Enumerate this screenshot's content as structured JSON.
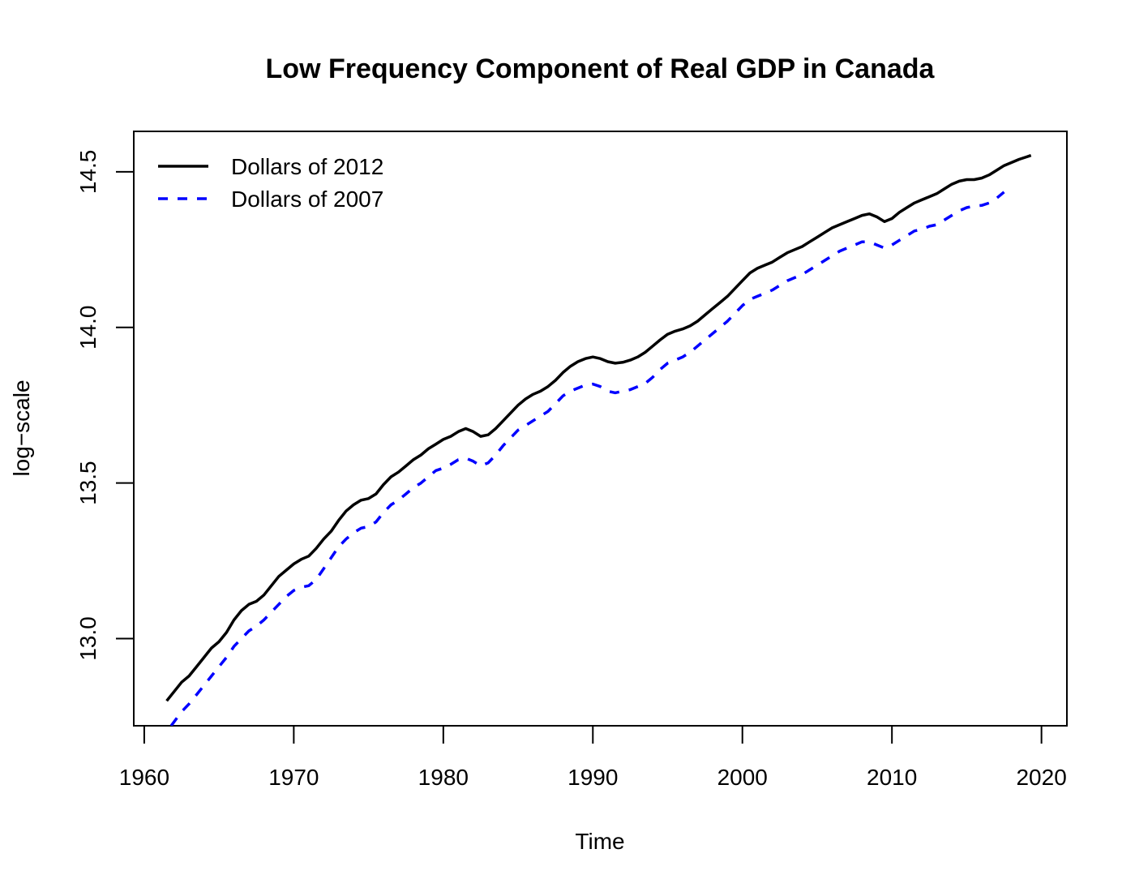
{
  "chart_data": {
    "type": "line",
    "title": "Low Frequency Component of Real GDP in Canada",
    "xlabel": "Time",
    "ylabel": "log−scale",
    "xlim": [
      1959.3,
      2021.7
    ],
    "ylim": [
      12.72,
      14.63
    ],
    "x_ticks": [
      1960,
      1970,
      1980,
      1990,
      2000,
      2010,
      2020
    ],
    "x_tick_labels": [
      "1960",
      "1970",
      "1980",
      "1990",
      "2000",
      "2010",
      "2020"
    ],
    "y_ticks": [
      13.0,
      13.5,
      14.0,
      14.5
    ],
    "y_tick_labels": [
      "13.0",
      "13.5",
      "14.0",
      "14.5"
    ],
    "grid": false,
    "legend_position": "top-left",
    "series": [
      {
        "name": "Dollars of 2012",
        "color": "#000000",
        "dash": "solid",
        "points": [
          [
            1961.5,
            12.8
          ],
          [
            1962.0,
            12.83
          ],
          [
            1962.5,
            12.86
          ],
          [
            1963.0,
            12.88
          ],
          [
            1963.5,
            12.91
          ],
          [
            1964.0,
            12.94
          ],
          [
            1964.5,
            12.97
          ],
          [
            1965.0,
            12.99
          ],
          [
            1965.5,
            13.02
          ],
          [
            1966.0,
            13.06
          ],
          [
            1966.5,
            13.09
          ],
          [
            1967.0,
            13.11
          ],
          [
            1967.5,
            13.12
          ],
          [
            1968.0,
            13.14
          ],
          [
            1968.5,
            13.17
          ],
          [
            1969.0,
            13.2
          ],
          [
            1969.5,
            13.22
          ],
          [
            1970.0,
            13.24
          ],
          [
            1970.5,
            13.255
          ],
          [
            1971.0,
            13.265
          ],
          [
            1971.5,
            13.29
          ],
          [
            1972.0,
            13.32
          ],
          [
            1972.5,
            13.345
          ],
          [
            1973.0,
            13.38
          ],
          [
            1973.5,
            13.41
          ],
          [
            1974.0,
            13.43
          ],
          [
            1974.5,
            13.445
          ],
          [
            1975.0,
            13.45
          ],
          [
            1975.5,
            13.465
          ],
          [
            1976.0,
            13.495
          ],
          [
            1976.5,
            13.52
          ],
          [
            1977.0,
            13.535
          ],
          [
            1977.5,
            13.555
          ],
          [
            1978.0,
            13.575
          ],
          [
            1978.5,
            13.59
          ],
          [
            1979.0,
            13.61
          ],
          [
            1979.5,
            13.625
          ],
          [
            1980.0,
            13.64
          ],
          [
            1980.5,
            13.65
          ],
          [
            1981.0,
            13.665
          ],
          [
            1981.5,
            13.675
          ],
          [
            1982.0,
            13.665
          ],
          [
            1982.5,
            13.65
          ],
          [
            1983.0,
            13.655
          ],
          [
            1983.5,
            13.675
          ],
          [
            1984.0,
            13.7
          ],
          [
            1984.5,
            13.725
          ],
          [
            1985.0,
            13.75
          ],
          [
            1985.5,
            13.77
          ],
          [
            1986.0,
            13.785
          ],
          [
            1986.5,
            13.795
          ],
          [
            1987.0,
            13.81
          ],
          [
            1987.5,
            13.83
          ],
          [
            1988.0,
            13.855
          ],
          [
            1988.5,
            13.875
          ],
          [
            1989.0,
            13.89
          ],
          [
            1989.5,
            13.9
          ],
          [
            1990.0,
            13.905
          ],
          [
            1990.5,
            13.9
          ],
          [
            1991.0,
            13.89
          ],
          [
            1991.5,
            13.885
          ],
          [
            1992.0,
            13.888
          ],
          [
            1992.5,
            13.895
          ],
          [
            1993.0,
            13.905
          ],
          [
            1993.5,
            13.92
          ],
          [
            1994.0,
            13.94
          ],
          [
            1994.5,
            13.96
          ],
          [
            1995.0,
            13.978
          ],
          [
            1995.5,
            13.988
          ],
          [
            1996.0,
            13.995
          ],
          [
            1996.5,
            14.005
          ],
          [
            1997.0,
            14.02
          ],
          [
            1997.5,
            14.04
          ],
          [
            1998.0,
            14.06
          ],
          [
            1998.5,
            14.08
          ],
          [
            1999.0,
            14.1
          ],
          [
            1999.5,
            14.125
          ],
          [
            2000.0,
            14.15
          ],
          [
            2000.5,
            14.175
          ],
          [
            2001.0,
            14.19
          ],
          [
            2001.5,
            14.2
          ],
          [
            2002.0,
            14.21
          ],
          [
            2002.5,
            14.225
          ],
          [
            2003.0,
            14.24
          ],
          [
            2003.5,
            14.25
          ],
          [
            2004.0,
            14.26
          ],
          [
            2004.5,
            14.275
          ],
          [
            2005.0,
            14.29
          ],
          [
            2005.5,
            14.305
          ],
          [
            2006.0,
            14.32
          ],
          [
            2006.5,
            14.33
          ],
          [
            2007.0,
            14.34
          ],
          [
            2007.5,
            14.35
          ],
          [
            2008.0,
            14.36
          ],
          [
            2008.5,
            14.365
          ],
          [
            2009.0,
            14.355
          ],
          [
            2009.5,
            14.34
          ],
          [
            2010.0,
            14.35
          ],
          [
            2010.5,
            14.37
          ],
          [
            2011.0,
            14.385
          ],
          [
            2011.5,
            14.4
          ],
          [
            2012.0,
            14.41
          ],
          [
            2012.5,
            14.42
          ],
          [
            2013.0,
            14.43
          ],
          [
            2013.5,
            14.445
          ],
          [
            2014.0,
            14.46
          ],
          [
            2014.5,
            14.47
          ],
          [
            2015.0,
            14.475
          ],
          [
            2015.5,
            14.475
          ],
          [
            2016.0,
            14.48
          ],
          [
            2016.5,
            14.49
          ],
          [
            2017.0,
            14.505
          ],
          [
            2017.5,
            14.52
          ],
          [
            2018.0,
            14.53
          ],
          [
            2018.5,
            14.54
          ],
          [
            2019.0,
            14.548
          ],
          [
            2019.3,
            14.553
          ]
        ]
      },
      {
        "name": "Dollars of 2007",
        "color": "#0000ff",
        "dash": "dashed",
        "points": [
          [
            1961.8,
            12.72
          ],
          [
            1962.5,
            12.765
          ],
          [
            1963.0,
            12.79
          ],
          [
            1963.5,
            12.82
          ],
          [
            1964.0,
            12.85
          ],
          [
            1964.5,
            12.88
          ],
          [
            1965.0,
            12.91
          ],
          [
            1965.5,
            12.94
          ],
          [
            1966.0,
            12.975
          ],
          [
            1966.5,
            13.0
          ],
          [
            1967.0,
            13.025
          ],
          [
            1967.5,
            13.04
          ],
          [
            1968.0,
            13.06
          ],
          [
            1968.5,
            13.085
          ],
          [
            1969.0,
            13.11
          ],
          [
            1969.5,
            13.135
          ],
          [
            1970.0,
            13.155
          ],
          [
            1970.5,
            13.165
          ],
          [
            1971.0,
            13.17
          ],
          [
            1971.5,
            13.19
          ],
          [
            1972.0,
            13.225
          ],
          [
            1972.5,
            13.26
          ],
          [
            1973.0,
            13.295
          ],
          [
            1973.5,
            13.32
          ],
          [
            1974.0,
            13.34
          ],
          [
            1974.5,
            13.355
          ],
          [
            1975.0,
            13.36
          ],
          [
            1975.5,
            13.375
          ],
          [
            1976.0,
            13.405
          ],
          [
            1976.5,
            13.43
          ],
          [
            1977.0,
            13.445
          ],
          [
            1977.5,
            13.465
          ],
          [
            1978.0,
            13.485
          ],
          [
            1978.5,
            13.5
          ],
          [
            1979.0,
            13.52
          ],
          [
            1979.5,
            13.54
          ],
          [
            1980.0,
            13.548
          ],
          [
            1980.5,
            13.56
          ],
          [
            1981.0,
            13.575
          ],
          [
            1981.5,
            13.58
          ],
          [
            1982.0,
            13.57
          ],
          [
            1982.5,
            13.555
          ],
          [
            1983.0,
            13.565
          ],
          [
            1983.5,
            13.59
          ],
          [
            1984.0,
            13.62
          ],
          [
            1984.5,
            13.645
          ],
          [
            1985.0,
            13.67
          ],
          [
            1985.5,
            13.685
          ],
          [
            1986.0,
            13.7
          ],
          [
            1986.5,
            13.715
          ],
          [
            1987.0,
            13.73
          ],
          [
            1987.5,
            13.755
          ],
          [
            1988.0,
            13.78
          ],
          [
            1988.5,
            13.795
          ],
          [
            1989.0,
            13.805
          ],
          [
            1989.5,
            13.815
          ],
          [
            1990.0,
            13.818
          ],
          [
            1990.5,
            13.81
          ],
          [
            1991.0,
            13.795
          ],
          [
            1991.5,
            13.79
          ],
          [
            1992.0,
            13.795
          ],
          [
            1992.5,
            13.8
          ],
          [
            1993.0,
            13.81
          ],
          [
            1993.5,
            13.82
          ],
          [
            1994.0,
            13.84
          ],
          [
            1994.5,
            13.865
          ],
          [
            1995.0,
            13.885
          ],
          [
            1995.5,
            13.895
          ],
          [
            1996.0,
            13.905
          ],
          [
            1996.5,
            13.92
          ],
          [
            1997.0,
            13.94
          ],
          [
            1997.5,
            13.96
          ],
          [
            1998.0,
            13.98
          ],
          [
            1998.5,
            14.0
          ],
          [
            1999.0,
            14.02
          ],
          [
            1999.5,
            14.045
          ],
          [
            2000.0,
            14.07
          ],
          [
            2000.5,
            14.09
          ],
          [
            2001.0,
            14.1
          ],
          [
            2001.5,
            14.11
          ],
          [
            2002.0,
            14.12
          ],
          [
            2002.5,
            14.135
          ],
          [
            2003.0,
            14.15
          ],
          [
            2003.5,
            14.16
          ],
          [
            2004.0,
            14.17
          ],
          [
            2004.5,
            14.185
          ],
          [
            2005.0,
            14.2
          ],
          [
            2005.5,
            14.215
          ],
          [
            2006.0,
            14.23
          ],
          [
            2006.5,
            14.245
          ],
          [
            2007.0,
            14.255
          ],
          [
            2007.5,
            14.265
          ],
          [
            2008.0,
            14.275
          ],
          [
            2008.5,
            14.275
          ],
          [
            2009.0,
            14.265
          ],
          [
            2009.5,
            14.255
          ],
          [
            2010.0,
            14.265
          ],
          [
            2010.5,
            14.28
          ],
          [
            2011.0,
            14.295
          ],
          [
            2011.5,
            14.31
          ],
          [
            2012.0,
            14.315
          ],
          [
            2012.5,
            14.325
          ],
          [
            2013.0,
            14.33
          ],
          [
            2013.5,
            14.345
          ],
          [
            2014.0,
            14.36
          ],
          [
            2014.5,
            14.375
          ],
          [
            2015.0,
            14.385
          ],
          [
            2015.5,
            14.39
          ],
          [
            2016.0,
            14.392
          ],
          [
            2016.5,
            14.4
          ],
          [
            2017.0,
            14.415
          ],
          [
            2017.5,
            14.435
          ]
        ]
      }
    ]
  }
}
